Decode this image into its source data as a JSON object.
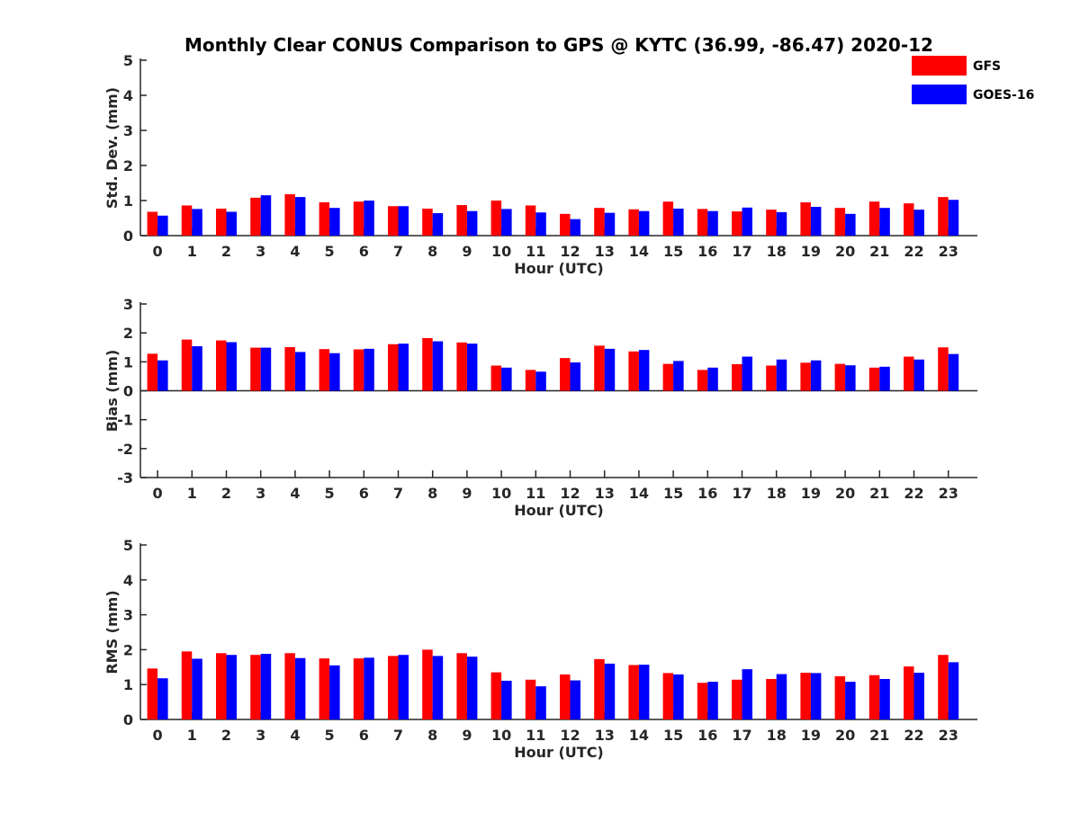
{
  "chart_data": {
    "title": "Monthly Clear CONUS Comparison to GPS @ KYTC (36.99, -86.47) 2020-12",
    "legend": [
      {
        "name": "GFS",
        "color": "#ff0000"
      },
      {
        "name": "GOES-16",
        "color": "#0000ff"
      }
    ],
    "legend_position": "top-right",
    "panels": [
      {
        "type": "bar",
        "xlabel": "Hour (UTC)",
        "ylabel": "Std. Dev. (mm)",
        "ylim": [
          0,
          5
        ],
        "yticks": [
          "0",
          "1",
          "2",
          "3",
          "4",
          "5"
        ],
        "categories": [
          "0",
          "1",
          "2",
          "3",
          "4",
          "5",
          "6",
          "7",
          "8",
          "9",
          "10",
          "11",
          "12",
          "13",
          "14",
          "15",
          "16",
          "17",
          "18",
          "19",
          "20",
          "21",
          "22",
          "23"
        ],
        "series": [
          {
            "name": "GFS",
            "color": "#ff0000",
            "values": [
              0.68,
              0.86,
              0.77,
              1.08,
              1.18,
              0.95,
              0.97,
              0.84,
              0.77,
              0.87,
              1.0,
              0.86,
              0.62,
              0.79,
              0.75,
              0.97,
              0.76,
              0.69,
              0.74,
              0.95,
              0.79,
              0.97,
              0.92,
              1.1
            ]
          },
          {
            "name": "GOES-16",
            "color": "#0000ff",
            "values": [
              0.57,
              0.76,
              0.68,
              1.15,
              1.1,
              0.79,
              1.0,
              0.84,
              0.64,
              0.7,
              0.76,
              0.66,
              0.47,
              0.65,
              0.7,
              0.77,
              0.7,
              0.8,
              0.67,
              0.82,
              0.62,
              0.79,
              0.74,
              1.02
            ]
          }
        ]
      },
      {
        "type": "bar",
        "xlabel": "Hour (UTC)",
        "ylabel": "Bias (mm)",
        "ylim": [
          -3,
          3
        ],
        "yticks": [
          "-3",
          "-2",
          "-1",
          "0",
          "1",
          "2",
          "3"
        ],
        "categories": [
          "0",
          "1",
          "2",
          "3",
          "4",
          "5",
          "6",
          "7",
          "8",
          "9",
          "10",
          "11",
          "12",
          "13",
          "14",
          "15",
          "16",
          "17",
          "18",
          "19",
          "20",
          "21",
          "22",
          "23"
        ],
        "series": [
          {
            "name": "GFS",
            "color": "#ff0000",
            "values": [
              1.28,
              1.77,
              1.74,
              1.49,
              1.51,
              1.44,
              1.43,
              1.61,
              1.82,
              1.67,
              0.87,
              0.72,
              1.13,
              1.56,
              1.36,
              0.93,
              0.72,
              0.92,
              0.87,
              0.97,
              0.93,
              0.8,
              1.18,
              1.5
            ]
          },
          {
            "name": "GOES-16",
            "color": "#0000ff",
            "values": [
              1.05,
              1.54,
              1.68,
              1.49,
              1.34,
              1.3,
              1.45,
              1.63,
              1.71,
              1.63,
              0.8,
              0.66,
              0.98,
              1.45,
              1.41,
              1.03,
              0.8,
              1.18,
              1.08,
              1.05,
              0.88,
              0.83,
              1.08,
              1.27
            ]
          }
        ]
      },
      {
        "type": "bar",
        "xlabel": "Hour (UTC)",
        "ylabel": "RMS (mm)",
        "ylim": [
          0,
          5
        ],
        "yticks": [
          "0",
          "1",
          "2",
          "3",
          "4",
          "5"
        ],
        "categories": [
          "0",
          "1",
          "2",
          "3",
          "4",
          "5",
          "6",
          "7",
          "8",
          "9",
          "10",
          "11",
          "12",
          "13",
          "14",
          "15",
          "16",
          "17",
          "18",
          "19",
          "20",
          "21",
          "22",
          "23"
        ],
        "series": [
          {
            "name": "GFS",
            "color": "#ff0000",
            "values": [
              1.46,
              1.95,
              1.9,
              1.85,
              1.9,
              1.75,
              1.75,
              1.82,
              2.0,
              1.9,
              1.35,
              1.14,
              1.29,
              1.73,
              1.56,
              1.33,
              1.05,
              1.14,
              1.16,
              1.34,
              1.24,
              1.27,
              1.52,
              1.85
            ]
          },
          {
            "name": "GOES-16",
            "color": "#0000ff",
            "values": [
              1.18,
              1.74,
              1.85,
              1.88,
              1.76,
              1.55,
              1.77,
              1.85,
              1.82,
              1.8,
              1.11,
              0.95,
              1.12,
              1.6,
              1.57,
              1.29,
              1.08,
              1.44,
              1.3,
              1.33,
              1.08,
              1.16,
              1.34,
              1.64
            ]
          }
        ]
      }
    ]
  }
}
